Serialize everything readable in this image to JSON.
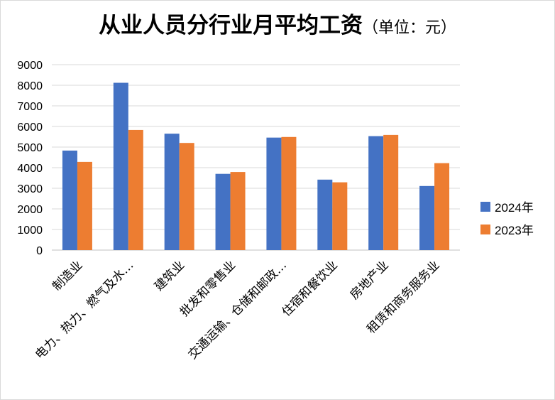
{
  "chart_data": {
    "type": "bar",
    "title": "从业人员分行业月平均工资",
    "subtitle": "（单位：元）",
    "categories": [
      "制造业",
      "电力、热力、燃气及水…",
      "建筑业",
      "批发和零售业",
      "交通运输、仓储和邮政…",
      "住宿和餐饮业",
      "房地产业",
      "租赁和商务服务业"
    ],
    "series": [
      {
        "name": "2024年",
        "color": "#4472C4",
        "values": [
          4830,
          8120,
          5650,
          3700,
          5460,
          3420,
          5530,
          3110
        ]
      },
      {
        "name": "2023年",
        "color": "#ED7D31",
        "values": [
          4280,
          5830,
          5200,
          3790,
          5490,
          3290,
          5590,
          4220
        ]
      }
    ],
    "yticks": [
      0,
      1000,
      2000,
      3000,
      4000,
      5000,
      6000,
      7000,
      8000,
      9000
    ],
    "ylim": [
      0,
      9000
    ],
    "grid": true,
    "legend_position": "right"
  }
}
